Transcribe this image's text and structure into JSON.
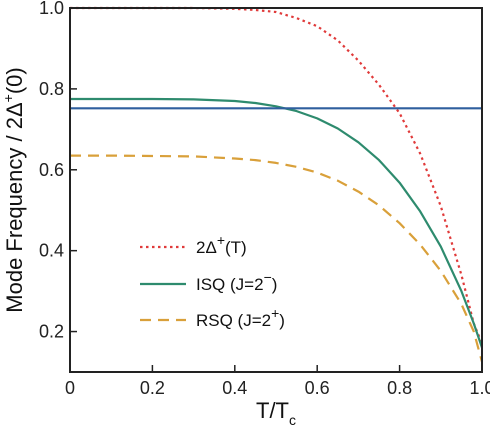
{
  "chart_data": {
    "type": "line",
    "title": "",
    "xlabel": {
      "main": "T/T",
      "sub": "c"
    },
    "ylabel": {
      "main": "Mode Frequency / 2Δ",
      "sup": "+",
      "tail": "(0)"
    },
    "xlim": [
      0,
      1.0
    ],
    "ylim": [
      0.1,
      1.0
    ],
    "xticks": [
      {
        "v": 0,
        "label": "0"
      },
      {
        "v": 0.2,
        "label": "0.2"
      },
      {
        "v": 0.4,
        "label": "0.4"
      },
      {
        "v": 0.6,
        "label": "0.6"
      },
      {
        "v": 0.8,
        "label": "0.8"
      },
      {
        "v": 1.0,
        "label": "1.0"
      }
    ],
    "yticks": [
      {
        "v": 0.2,
        "label": "0.2"
      },
      {
        "v": 0.4,
        "label": "0.4"
      },
      {
        "v": 0.6,
        "label": "0.6"
      },
      {
        "v": 0.8,
        "label": "0.8"
      },
      {
        "v": 1.0,
        "label": "1.0"
      }
    ],
    "grid": false,
    "legend_position": "lower-left",
    "series": [
      {
        "name": "2Δ+(T)",
        "legend": {
          "main": "2Δ",
          "sup": "+",
          "tail": "(T)"
        },
        "color": "#e03a3a",
        "style": "dotted",
        "x": [
          0,
          0.1,
          0.2,
          0.3,
          0.4,
          0.45,
          0.5,
          0.55,
          0.6,
          0.65,
          0.7,
          0.75,
          0.8,
          0.85,
          0.9,
          0.95,
          0.98,
          1.0
        ],
        "y": [
          1.0,
          1.0,
          1.0,
          1.0,
          0.998,
          0.995,
          0.99,
          0.975,
          0.955,
          0.92,
          0.87,
          0.81,
          0.74,
          0.64,
          0.51,
          0.34,
          0.22,
          0.17
        ]
      },
      {
        "name": "ISQ (J=2−)",
        "legend": {
          "main": "ISQ (J=2",
          "sup": "−",
          "tail": ")"
        },
        "color": "#2e8b6e",
        "style": "solid",
        "x": [
          0,
          0.1,
          0.2,
          0.3,
          0.4,
          0.45,
          0.5,
          0.55,
          0.6,
          0.65,
          0.7,
          0.75,
          0.8,
          0.85,
          0.9,
          0.95,
          0.98,
          1.0
        ],
        "y": [
          0.775,
          0.775,
          0.775,
          0.774,
          0.77,
          0.765,
          0.757,
          0.745,
          0.727,
          0.702,
          0.668,
          0.624,
          0.568,
          0.497,
          0.41,
          0.3,
          0.22,
          0.16
        ]
      },
      {
        "name": "RSQ (J=2+)",
        "legend": {
          "main": "RSQ (J=2",
          "sup": "+",
          "tail": ")"
        },
        "color": "#d9a03a",
        "style": "dashed",
        "x": [
          0,
          0.1,
          0.2,
          0.3,
          0.4,
          0.45,
          0.5,
          0.55,
          0.6,
          0.65,
          0.7,
          0.75,
          0.8,
          0.85,
          0.9,
          0.95,
          0.98,
          1.0
        ],
        "y": [
          0.635,
          0.635,
          0.634,
          0.633,
          0.628,
          0.624,
          0.617,
          0.607,
          0.593,
          0.573,
          0.546,
          0.512,
          0.468,
          0.415,
          0.35,
          0.268,
          0.2,
          0.125
        ]
      },
      {
        "name": "horizontal reference",
        "color": "#2f5f9e",
        "style": "solid",
        "x": [
          0,
          1.0
        ],
        "y": [
          0.752,
          0.752
        ]
      }
    ]
  }
}
